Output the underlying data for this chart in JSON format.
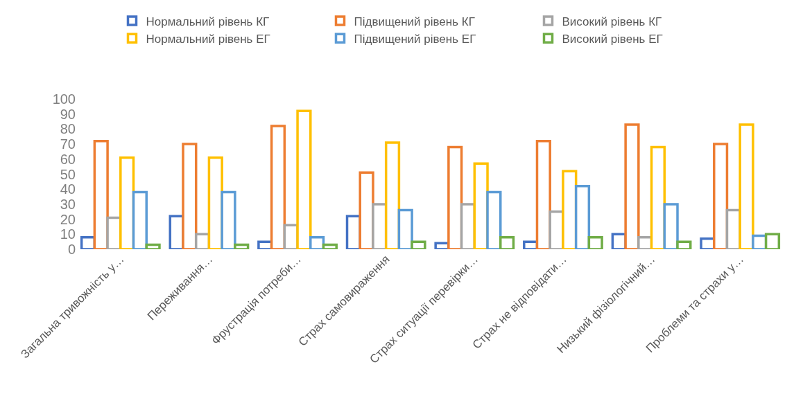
{
  "chart_data": {
    "type": "bar",
    "categories": [
      "Загальна тривожність у…",
      "Переживання…",
      "Фрустрація потреби…",
      "Страх самовираження",
      "Страх ситуації перевірки…",
      "Страх не відповідати…",
      "Низький фізіологічний…",
      "Проблеми та страхи у…"
    ],
    "series": [
      {
        "name": "Нормальний рівень КГ",
        "color": "#4472c4",
        "values": [
          8,
          22,
          5,
          22,
          4,
          5,
          10,
          7
        ]
      },
      {
        "name": "Підвищений рівень КГ",
        "color": "#ed7d31",
        "values": [
          72,
          70,
          82,
          51,
          68,
          72,
          83,
          70
        ]
      },
      {
        "name": "Високий рівень КГ",
        "color": "#a5a5a5",
        "values": [
          21,
          10,
          16,
          30,
          30,
          25,
          8,
          26
        ]
      },
      {
        "name": "Нормальний рівень ЕГ",
        "color": "#ffc000",
        "values": [
          61,
          61,
          92,
          71,
          57,
          52,
          68,
          83
        ]
      },
      {
        "name": "Підвищений рівень ЕГ",
        "color": "#5b9bd5",
        "values": [
          38,
          38,
          8,
          26,
          38,
          42,
          30,
          9
        ]
      },
      {
        "name": "Високий рівень ЕГ",
        "color": "#70ad47",
        "values": [
          3,
          3,
          3,
          5,
          8,
          8,
          5,
          10
        ]
      }
    ],
    "ylim": [
      0,
      100
    ],
    "yticks": [
      0,
      10,
      20,
      30,
      40,
      50,
      60,
      70,
      80,
      90,
      100
    ],
    "grid": false,
    "legend": "top"
  }
}
